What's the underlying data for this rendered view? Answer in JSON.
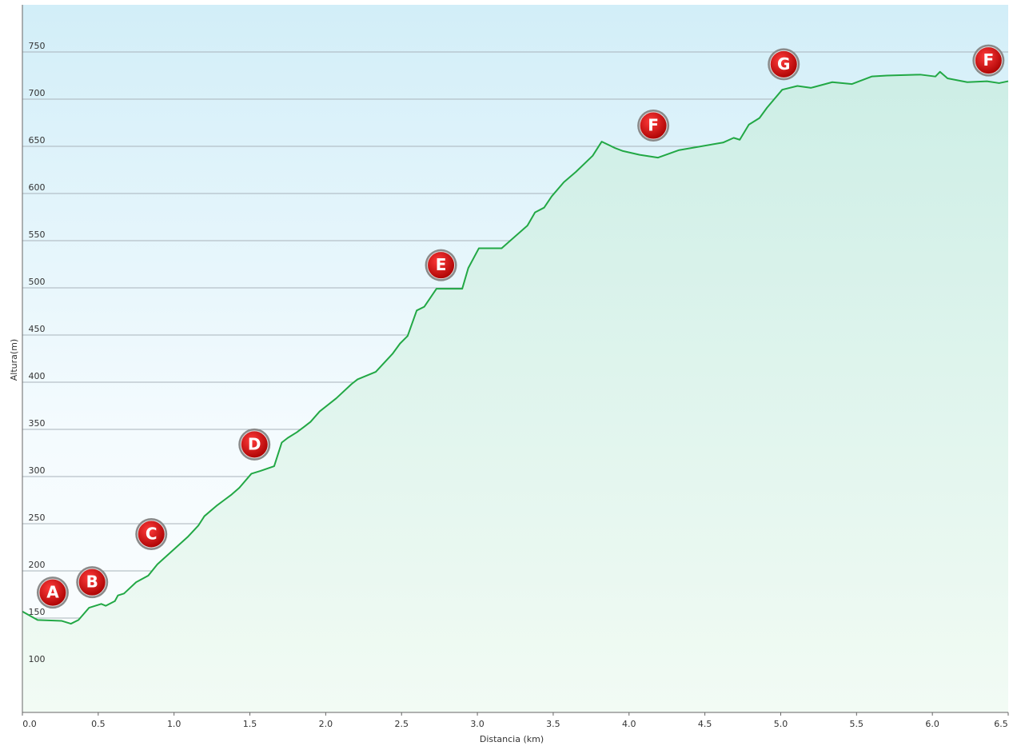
{
  "chart_data": {
    "type": "line",
    "ylabel": "Altura(m)",
    "xlabel": "Distancia  (km)",
    "x": [
      0,
      0.1,
      0.26,
      0.32,
      0.37,
      0.44,
      0.52,
      0.55,
      0.61,
      0.63,
      0.67,
      0.75,
      0.83,
      0.89,
      1.09,
      1.16,
      1.2,
      1.28,
      1.33,
      1.38,
      1.43,
      1.51,
      1.57,
      1.66,
      1.71,
      1.75,
      1.81,
      1.86,
      1.9,
      1.96,
      2.07,
      2.17,
      2.21,
      2.33,
      2.44,
      2.49,
      2.54,
      2.6,
      2.65,
      2.73,
      2.9,
      2.94,
      3.01,
      3.16,
      3.33,
      3.38,
      3.44,
      3.49,
      3.57,
      3.65,
      3.76,
      3.82,
      3.91,
      3.96,
      4.07,
      4.19,
      4.33,
      4.62,
      4.69,
      4.73,
      4.79,
      4.86,
      4.91,
      5.01,
      5.11,
      5.2,
      5.34,
      5.47,
      5.6,
      5.7,
      5.92,
      6.02,
      6.05,
      6.1,
      6.23,
      6.36,
      6.44,
      6.5
    ],
    "series": [
      {
        "color": "#22a845",
        "values": [
          157,
          148,
          147,
          144,
          148,
          161,
          165,
          163,
          168,
          174,
          176,
          188,
          195,
          207,
          236,
          248,
          258,
          269,
          275,
          281,
          288,
          303,
          306,
          311,
          336,
          341,
          347,
          353,
          358,
          369,
          383,
          398,
          403,
          411,
          430,
          441,
          449,
          476,
          480,
          499,
          499,
          521,
          542,
          542,
          566,
          580,
          585,
          597,
          612,
          623,
          640,
          655,
          648,
          645,
          641,
          638,
          646,
          654,
          659,
          657,
          673,
          680,
          691,
          710,
          714,
          712,
          718,
          716,
          724,
          725,
          726,
          724,
          729,
          722,
          718,
          719,
          717,
          719
        ]
      }
    ],
    "waypoints": [
      {
        "label": "A",
        "x": 0.2,
        "y": 177
      },
      {
        "label": "B",
        "x": 0.46,
        "y": 188
      },
      {
        "label": "C",
        "x": 0.85,
        "y": 239
      },
      {
        "label": "D",
        "x": 1.53,
        "y": 334
      },
      {
        "label": "E",
        "x": 2.76,
        "y": 524
      },
      {
        "label": "F",
        "x": 4.16,
        "y": 672
      },
      {
        "label": "G",
        "x": 5.02,
        "y": 737
      },
      {
        "label": "F",
        "x": 6.37,
        "y": 741
      }
    ],
    "xlim": [
      0,
      6.5
    ],
    "ylim": [
      50,
      800
    ],
    "xticks": [
      {
        "value": 0,
        "label": "0.0"
      },
      0.5,
      {
        "value": 1,
        "label": "1.0"
      },
      1.5,
      {
        "value": 2,
        "label": "2.0"
      },
      2.5,
      {
        "value": 3,
        "label": "3.0"
      },
      3.5,
      {
        "value": 4,
        "label": "4.0"
      },
      4.5,
      {
        "value": 5,
        "label": "5.0"
      },
      5.5,
      {
        "value": 6,
        "label": "6.0"
      },
      6.5
    ],
    "yticks": [
      100,
      150,
      200,
      250,
      300,
      350,
      400,
      450,
      500,
      550,
      600,
      650,
      700,
      750
    ],
    "grid": true
  }
}
